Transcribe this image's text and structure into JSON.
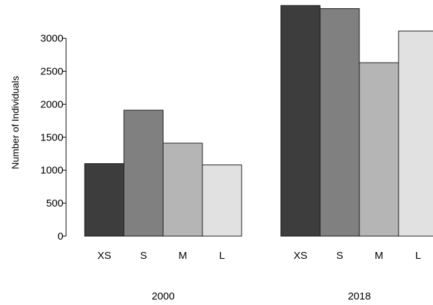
{
  "chart_data": {
    "type": "bar",
    "ylabel": "Number of Individuals",
    "ylim": [
      0,
      3500
    ],
    "yticks": [
      0,
      500,
      1000,
      1500,
      2000,
      2500,
      3000
    ],
    "grid": false,
    "categories": [
      "XS",
      "S",
      "M",
      "L"
    ],
    "bar_colors": [
      "#3d3d3d",
      "#808080",
      "#b5b5b5",
      "#e1e1e1"
    ],
    "groups": [
      {
        "label": "2000",
        "values": [
          1100,
          1910,
          1410,
          1080
        ]
      },
      {
        "label": "2018",
        "values": [
          3500,
          3450,
          2630,
          3110
        ]
      }
    ]
  }
}
